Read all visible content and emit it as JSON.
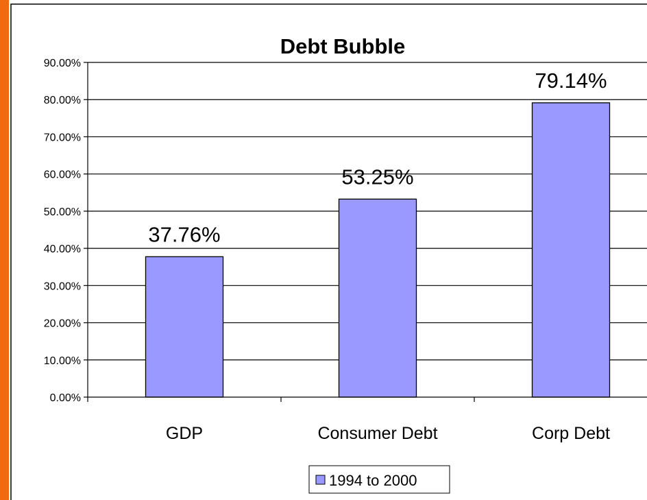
{
  "colors": {
    "accent_border": "#f26a10",
    "bar_fill": "#9999ff",
    "bar_stroke": "#000000",
    "gridline": "#000000",
    "frame": "#000000"
  },
  "chart_data": {
    "type": "bar",
    "title": "Debt Bubble",
    "xlabel": "",
    "ylabel": "",
    "categories": [
      "GDP",
      "Consumer Debt",
      "Corp Debt"
    ],
    "series": [
      {
        "name": "1994 to 2000",
        "values": [
          37.76,
          53.25,
          79.14
        ],
        "labels": [
          "37.76%",
          "53.25%",
          "79.14%"
        ]
      }
    ],
    "ylim": [
      0,
      90
    ],
    "yticks": [
      0,
      10,
      20,
      30,
      40,
      50,
      60,
      70,
      80,
      90
    ],
    "ytick_labels": [
      "0.00%",
      "10.00%",
      "20.00%",
      "30.00%",
      "40.00%",
      "50.00%",
      "60.00%",
      "70.00%",
      "80.00%",
      "90.00%"
    ],
    "grid": true,
    "legend_position": "bottom"
  }
}
